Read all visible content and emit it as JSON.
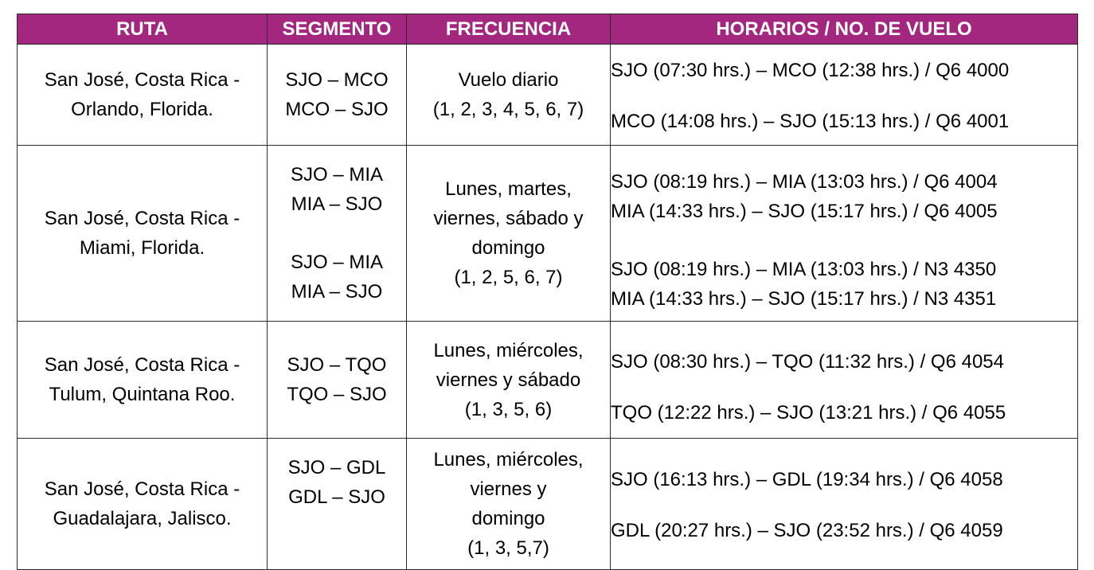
{
  "headers": {
    "ruta": "RUTA",
    "segmento": "SEGMENTO",
    "frecuencia": "FRECUENCIA",
    "horarios": "HORARIOS / NO. DE VUELO"
  },
  "rows": [
    {
      "ruta": [
        "San José, Costa Rica -",
        "Orlando, Florida."
      ],
      "segmento": [
        "SJO – MCO",
        "MCO – SJO"
      ],
      "frecuencia": [
        "Vuelo diario",
        "(1, 2, 3, 4, 5, 6, 7)"
      ],
      "horarios": [
        "SJO (07:30 hrs.) – MCO (12:38 hrs.) / Q6 4000",
        "MCO (14:08 hrs.) – SJO (15:13 hrs.) / Q6 4001"
      ]
    },
    {
      "ruta": [
        "San José, Costa Rica -",
        "Miami, Florida."
      ],
      "segmento": [
        "SJO – MIA",
        "MIA – SJO",
        "SJO – MIA",
        "MIA – SJO"
      ],
      "frecuencia": [
        "Lunes, martes,",
        "viernes, sábado y",
        "domingo",
        "(1, 2, 5, 6, 7)"
      ],
      "horarios": [
        "SJO (08:19 hrs.) – MIA (13:03 hrs.) / Q6 4004",
        "MIA (14:33 hrs.) – SJO (15:17 hrs.) / Q6 4005",
        "SJO (08:19 hrs.) – MIA (13:03 hrs.) / N3 4350",
        "MIA (14:33 hrs.) – SJO (15:17 hrs.) / N3 4351"
      ]
    },
    {
      "ruta": [
        "San José, Costa Rica -",
        "Tulum, Quintana Roo."
      ],
      "segmento": [
        "SJO – TQO",
        "TQO – SJO"
      ],
      "frecuencia": [
        "Lunes, miércoles,",
        "viernes y sábado",
        "(1, 3, 5, 6)"
      ],
      "horarios": [
        "SJO (08:30 hrs.) – TQO (11:32 hrs.) / Q6 4054",
        "TQO (12:22 hrs.) – SJO (13:21 hrs.) / Q6 4055"
      ]
    },
    {
      "ruta": [
        "San José, Costa Rica -",
        "Guadalajara, Jalisco."
      ],
      "segmento": [
        "SJO – GDL",
        "GDL – SJO"
      ],
      "frecuencia": [
        "Lunes, miércoles,",
        "viernes y",
        "domingo",
        "(1, 3, 5,7)"
      ],
      "horarios": [
        "SJO (16:13 hrs.) – GDL (19:34 hrs.) / Q6 4058",
        "GDL (20:27 hrs.) – SJO (23:52 hrs.) / Q6 4059"
      ]
    }
  ]
}
